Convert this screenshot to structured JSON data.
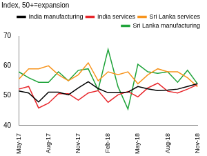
{
  "chart_data": {
    "type": "line",
    "title": "Index, 50+=expansion",
    "categories": [
      "May-17",
      null,
      null,
      "Aug-17",
      null,
      null,
      "Nov-17",
      null,
      null,
      "Feb-18",
      null,
      null,
      "May-18",
      null,
      null,
      "Aug-18",
      null,
      null,
      "Nov-18"
    ],
    "series": [
      {
        "name": "India manufacturing",
        "color": "#000000",
        "values": [
          51.6,
          50.9,
          47.9,
          51.2,
          51.2,
          50.3,
          52.6,
          54.7,
          52.4,
          51.0,
          51.0,
          51.2,
          53.1,
          52.3,
          51.7,
          51.9,
          52.2,
          53.1,
          54.0
        ]
      },
      {
        "name": "India services",
        "color": "#e8262b",
        "values": [
          52.2,
          53.1,
          45.9,
          47.5,
          50.7,
          50.7,
          48.5,
          50.9,
          51.7,
          47.8,
          50.3,
          51.4,
          49.6,
          52.6,
          54.2,
          51.5,
          50.9,
          52.2,
          53.7
        ]
      },
      {
        "name": "Sri Lanka services",
        "color": "#f7941d",
        "values": [
          55.5,
          59.0,
          59.0,
          60.0,
          57.0,
          55.0,
          57.0,
          61.0,
          55.0,
          58.0,
          57.0,
          58.0,
          54.0,
          57.0,
          59.0,
          58.0,
          58.0,
          56.0,
          53.0
        ]
      },
      {
        "name": "Sri Lanka manufacturing",
        "color": "#1fa33a",
        "values": [
          58.0,
          56.0,
          54.5,
          54.5,
          58.0,
          55.0,
          58.5,
          59.0,
          52.0,
          65.5,
          53.0,
          45.5,
          60.5,
          58.0,
          57.5,
          58.0,
          54.5,
          58.5,
          54.0
        ]
      }
    ],
    "ylim": [
      40,
      70
    ],
    "yticks": [
      40,
      50,
      60,
      70
    ],
    "grid": false,
    "legend": "top"
  }
}
